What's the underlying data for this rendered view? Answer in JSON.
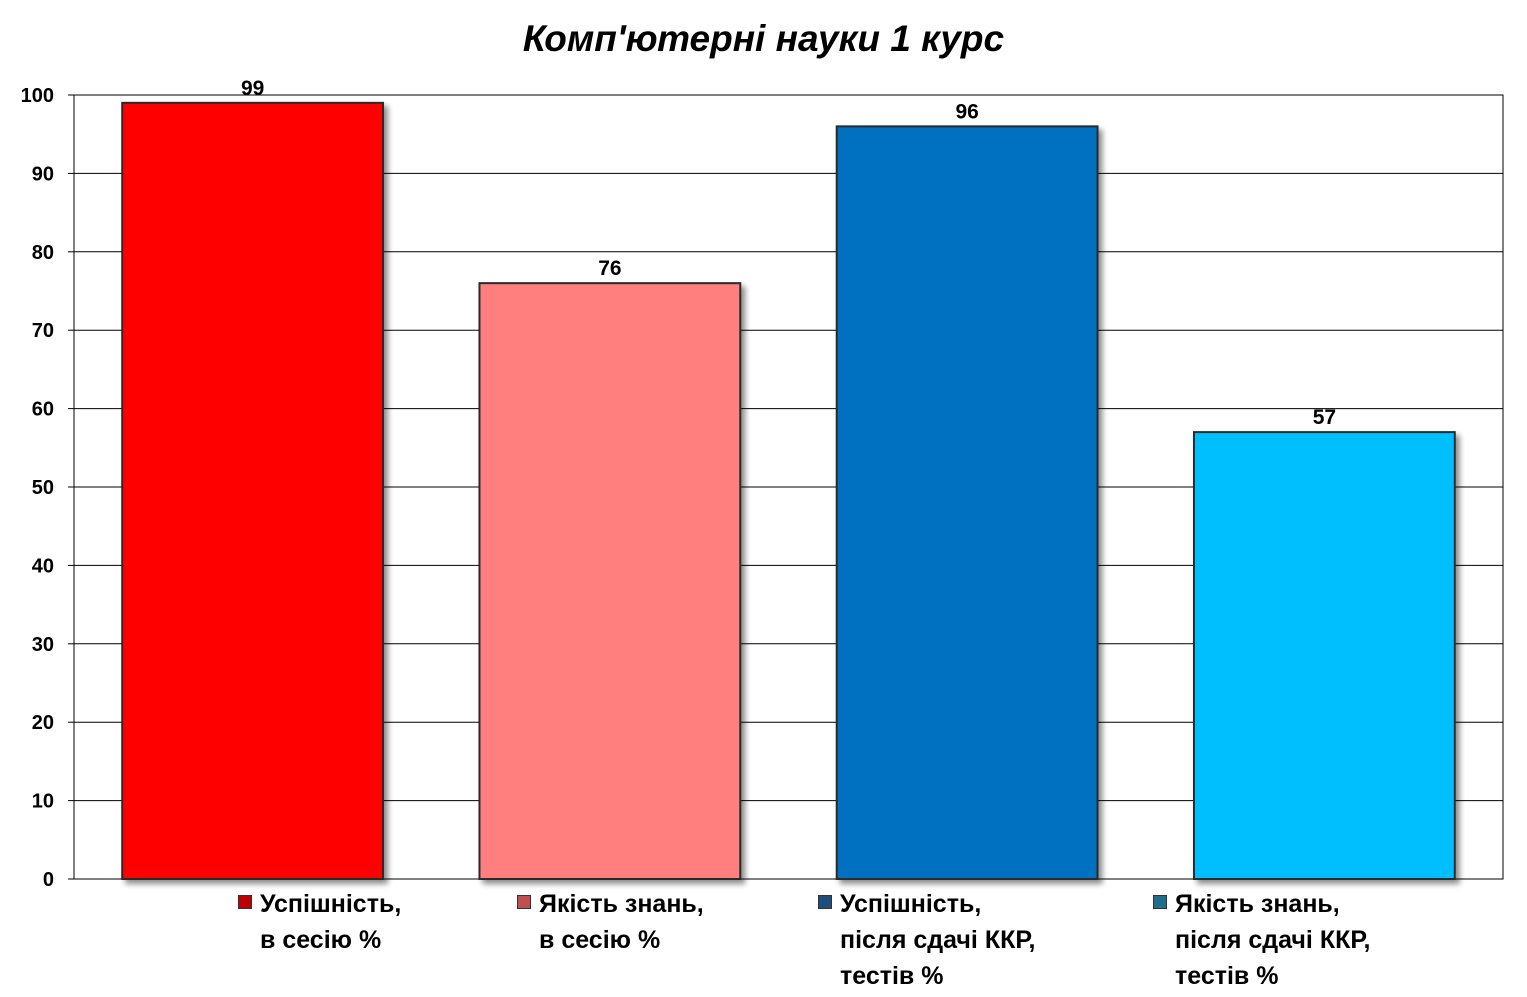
{
  "chart_data": {
    "type": "bar",
    "title": "Комп'ютерні науки 1 курс",
    "xlabel": "",
    "ylabel": "",
    "ylim": [
      0,
      100
    ],
    "yticks": [
      "0",
      "10",
      "20",
      "30",
      "40",
      "50",
      "60",
      "70",
      "80",
      "90",
      "100"
    ],
    "grid": true,
    "legend_position": "bottom",
    "categories": [
      "Успішність,\nв сесію %",
      "Якість знань,\nв сесію %",
      "Успішність,\nпісля сдачі ККР,\nтестів %",
      "Якість знань,\nпісля сдачі ККР,\nтестів %"
    ],
    "values": [
      99,
      76,
      96,
      57
    ],
    "data_labels": [
      "99",
      "76",
      "96",
      "57"
    ],
    "colors": [
      "#ff0000",
      "#ff7f7f",
      "#0070c0",
      "#00bfff"
    ],
    "swatch_colors": [
      "#c00000",
      "#c0504d",
      "#1f4e79",
      "#1f6f8b"
    ]
  }
}
